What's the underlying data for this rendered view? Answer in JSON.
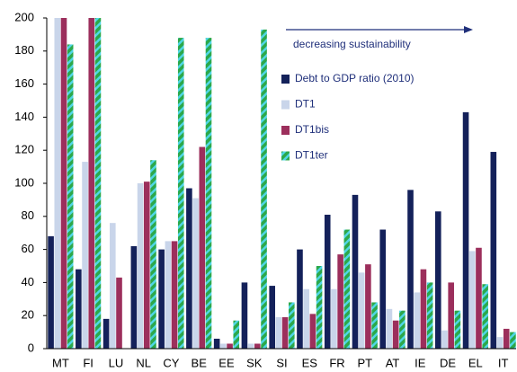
{
  "chart_data": {
    "type": "bar",
    "annotation": "decreasing sustainability",
    "categories": [
      "MT",
      "FI",
      "LU",
      "NL",
      "CY",
      "BE",
      "EE",
      "SK",
      "SI",
      "ES",
      "FR",
      "PT",
      "AT",
      "IE",
      "DE",
      "EL",
      "IT"
    ],
    "series": [
      {
        "name": "Debt to GDP ratio (2010)",
        "color": "#14215a",
        "values": [
          68,
          48,
          18,
          62,
          60,
          97,
          6,
          40,
          38,
          60,
          81,
          93,
          72,
          96,
          83,
          143,
          119
        ]
      },
      {
        "name": "DT1",
        "color": "#c9d5ea",
        "values": [
          200,
          113,
          76,
          100,
          65,
          91,
          3,
          3,
          19,
          36,
          36,
          46,
          24,
          34,
          11,
          59,
          7
        ]
      },
      {
        "name": "DT1bis",
        "color": "#9c2f5c",
        "values": [
          200,
          200,
          43,
          101,
          65,
          122,
          3,
          3,
          19,
          21,
          57,
          51,
          17,
          48,
          40,
          61,
          12
        ]
      },
      {
        "name": "DT1ter",
        "color": "#2ca84a",
        "values": [
          184,
          200,
          null,
          114,
          188,
          188,
          17,
          193,
          28,
          50,
          72,
          28,
          23,
          40,
          23,
          39,
          10
        ]
      }
    ],
    "ylim": [
      0,
      200
    ],
    "yticks": [
      0,
      20,
      40,
      60,
      80,
      100,
      120,
      140,
      160,
      180,
      200
    ],
    "grid": false
  }
}
